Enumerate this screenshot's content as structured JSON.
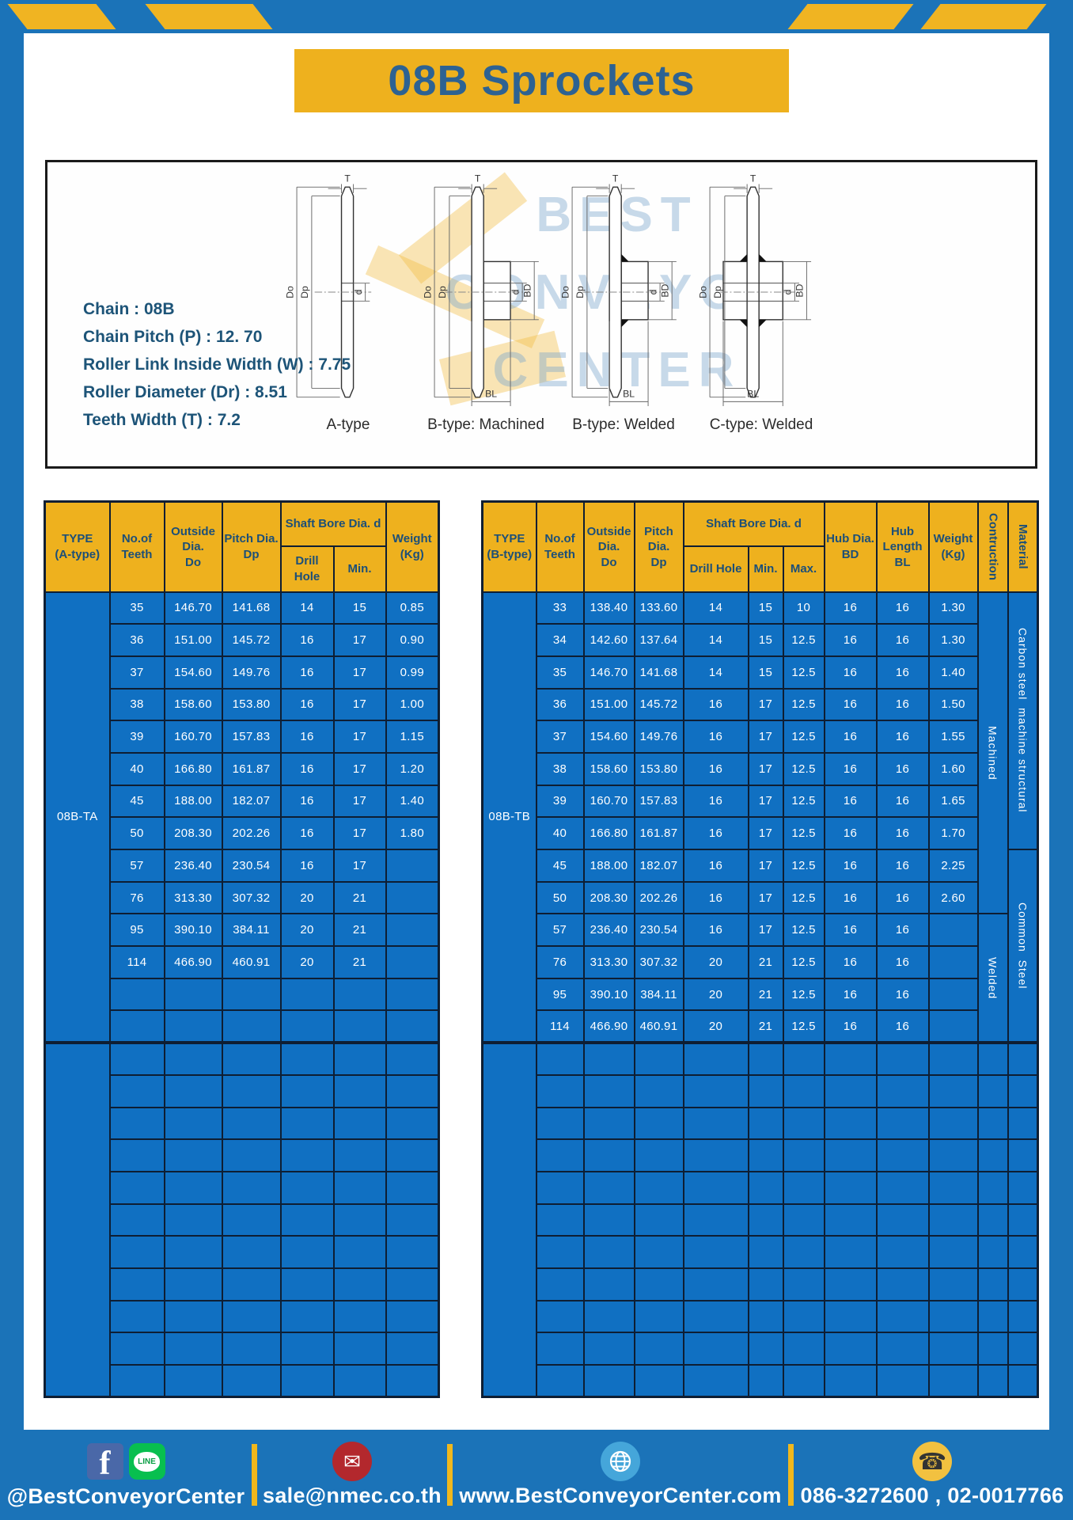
{
  "page": {
    "title": "08B Sprockets"
  },
  "specs": {
    "lines": [
      "Chain : 08B",
      "Chain Pitch (P) : 12. 70",
      "Roller Link Inside Width (W) : 7.75",
      "Roller Diameter (Dr) : 8.51",
      "Teeth Width (T) : 7.2"
    ]
  },
  "watermark": {
    "lines": [
      "BEST",
      "CONVEYOR",
      "CENTER"
    ]
  },
  "diagrams": [
    {
      "caption": "A-type",
      "style": "plain",
      "dims": [
        "T",
        "Do",
        "Dp",
        "d"
      ]
    },
    {
      "caption": "B-type: Machined",
      "style": "hub",
      "dims": [
        "T",
        "Do",
        "Dp",
        "d",
        "BD",
        "BL"
      ]
    },
    {
      "caption": "B-type: Welded",
      "style": "hub-welded",
      "dims": [
        "T",
        "Do",
        "Dp",
        "d",
        "BD",
        "BL"
      ]
    },
    {
      "caption": "C-type: Welded",
      "style": "wide-hub-welded",
      "dims": [
        "T",
        "Do",
        "Dp",
        "d",
        "BD",
        "BL"
      ]
    }
  ],
  "table_a": {
    "headers": {
      "type": "TYPE\n(A-type)",
      "teeth": "No.of\nTeeth",
      "outside_dia": "Outside\nDia.\nDo",
      "pitch_dia": "Pitch Dia.\nDp",
      "shaft_bore_group": "Shaft Bore Dia. d",
      "drill_hole": "Drill Hole",
      "min": "Min.",
      "weight": "Weight\n(Kg)"
    },
    "type_value": "08B-TA",
    "rows": [
      [
        "35",
        "146.70",
        "141.68",
        "14",
        "15",
        "0.85"
      ],
      [
        "36",
        "151.00",
        "145.72",
        "16",
        "17",
        "0.90"
      ],
      [
        "37",
        "154.60",
        "149.76",
        "16",
        "17",
        "0.99"
      ],
      [
        "38",
        "158.60",
        "153.80",
        "16",
        "17",
        "1.00"
      ],
      [
        "39",
        "160.70",
        "157.83",
        "16",
        "17",
        "1.15"
      ],
      [
        "40",
        "166.80",
        "161.87",
        "16",
        "17",
        "1.20"
      ],
      [
        "45",
        "188.00",
        "182.07",
        "16",
        "17",
        "1.40"
      ],
      [
        "50",
        "208.30",
        "202.26",
        "16",
        "17",
        "1.80"
      ],
      [
        "57",
        "236.40",
        "230.54",
        "16",
        "17",
        ""
      ],
      [
        "76",
        "313.30",
        "307.32",
        "20",
        "21",
        ""
      ],
      [
        "95",
        "390.10",
        "384.11",
        "20",
        "21",
        ""
      ],
      [
        "114",
        "466.90",
        "460.91",
        "20",
        "21",
        ""
      ]
    ],
    "empty_rows_section1": 2,
    "empty_rows_section2": 11
  },
  "table_b": {
    "headers": {
      "type": "TYPE\n(B-type)",
      "teeth": "No.of\nTeeth",
      "outside_dia": "Outside\nDia.\nDo",
      "pitch_dia": "Pitch Dia.\nDp",
      "shaft_bore_group": "Shaft Bore Dia. d",
      "drill_hole": "Drill Hole",
      "min": "Min.",
      "max": "Max.",
      "hub_dia": "Hub Dia.\nBD",
      "hub_length": "Hub\nLength\nBL",
      "weight": "Weight\n(Kg)",
      "construction": "Contruction",
      "material": "Material"
    },
    "type_value": "08B-TB",
    "rows": [
      [
        "33",
        "138.40",
        "133.60",
        "14",
        "15",
        "10",
        "16",
        "16",
        "1.30"
      ],
      [
        "34",
        "142.60",
        "137.64",
        "14",
        "15",
        "12.5",
        "16",
        "16",
        "1.30"
      ],
      [
        "35",
        "146.70",
        "141.68",
        "14",
        "15",
        "12.5",
        "16",
        "16",
        "1.40"
      ],
      [
        "36",
        "151.00",
        "145.72",
        "16",
        "17",
        "12.5",
        "16",
        "16",
        "1.50"
      ],
      [
        "37",
        "154.60",
        "149.76",
        "16",
        "17",
        "12.5",
        "16",
        "16",
        "1.55"
      ],
      [
        "38",
        "158.60",
        "153.80",
        "16",
        "17",
        "12.5",
        "16",
        "16",
        "1.60"
      ],
      [
        "39",
        "160.70",
        "157.83",
        "16",
        "17",
        "12.5",
        "16",
        "16",
        "1.65"
      ],
      [
        "40",
        "166.80",
        "161.87",
        "16",
        "17",
        "12.5",
        "16",
        "16",
        "1.70"
      ],
      [
        "45",
        "188.00",
        "182.07",
        "16",
        "17",
        "12.5",
        "16",
        "16",
        "2.25"
      ],
      [
        "50",
        "208.30",
        "202.26",
        "16",
        "17",
        "12.5",
        "16",
        "16",
        "2.60"
      ],
      [
        "57",
        "236.40",
        "230.54",
        "16",
        "17",
        "12.5",
        "16",
        "16",
        ""
      ],
      [
        "76",
        "313.30",
        "307.32",
        "20",
        "21",
        "12.5",
        "16",
        "16",
        ""
      ],
      [
        "95",
        "390.10",
        "384.11",
        "20",
        "21",
        "12.5",
        "16",
        "16",
        ""
      ],
      [
        "114",
        "466.90",
        "460.91",
        "20",
        "21",
        "12.5",
        "16",
        "16",
        ""
      ]
    ],
    "construction_spans": [
      {
        "label": "Machined",
        "rows": 10
      },
      {
        "label": "Welded",
        "rows": 4
      }
    ],
    "material_spans": [
      {
        "label": "Carbon steel  machine structural",
        "rows": 8
      },
      {
        "label": "Common  Steel",
        "rows": 6
      }
    ],
    "empty_rows_section2": 11
  },
  "footer": {
    "facebook_letter": "f",
    "line_label": "LINE",
    "social_handle": "@BestConveyorCenter",
    "email": "sale@nmec.co.th",
    "website": "www.BestConveyorCenter.com",
    "phone": "086-3272600 , 02-0017766"
  },
  "colors": {
    "frame_blue": "#1b73b8",
    "accent_yellow": "#eeb11e",
    "table_blue": "#1070c2",
    "border_navy": "#0e1e33",
    "header_text": "#1c4f78",
    "title_text": "#2d6292"
  }
}
